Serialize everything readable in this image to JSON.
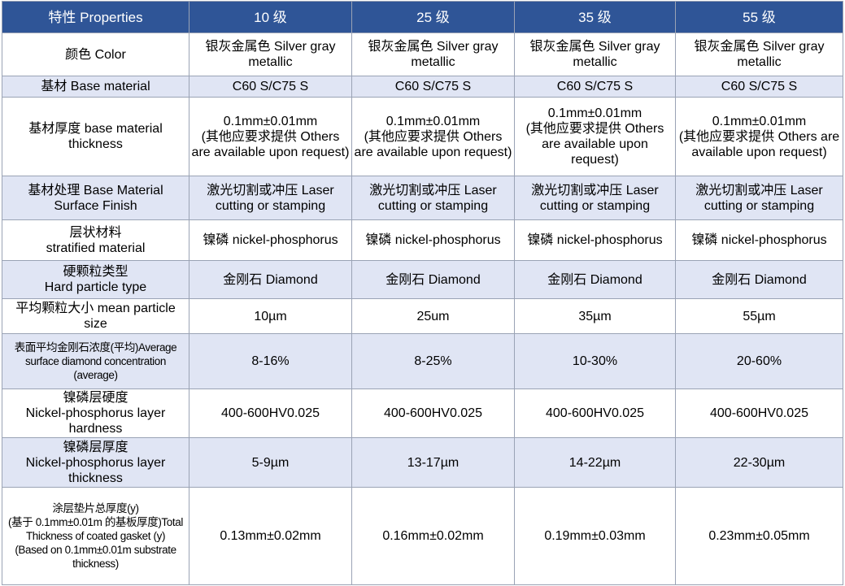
{
  "table": {
    "header": [
      "特性 Properties",
      "10 级",
      "25 级",
      "35 级",
      "55 级"
    ],
    "rows": [
      [
        "颜色 Color",
        "银灰金属色 Silver gray metallic",
        "银灰金属色 Silver gray metallic",
        "银灰金属色 Silver gray metallic",
        "银灰金属色 Silver gray metallic"
      ],
      [
        "基材 Base material",
        "C60 S/C75 S",
        "C60 S/C75 S",
        "C60 S/C75 S",
        "C60 S/C75 S"
      ],
      [
        "基材厚度 base material thickness",
        "0.1mm±0.01mm\n(其他应要求提供 Others are available upon request)",
        "0.1mm±0.01mm\n(其他应要求提供 Others are available upon request)",
        "0.1mm±0.01mm\n(其他应要求提供 Others are available upon request)",
        "0.1mm±0.01mm\n(其他应要求提供 Others are available upon request)"
      ],
      [
        "基材处理 Base Material Surface Finish",
        "激光切割或冲压 Laser cutting or stamping",
        "激光切割或冲压 Laser cutting or stamping",
        "激光切割或冲压 Laser cutting or stamping",
        "激光切割或冲压 Laser cutting or stamping"
      ],
      [
        "层状材料\nstratified material",
        "镍磷 nickel-phosphorus",
        "镍磷 nickel-phosphorus",
        "镍磷 nickel-phosphorus",
        "镍磷 nickel-phosphorus"
      ],
      [
        "硬颗粒类型\nHard particle type",
        "金刚石 Diamond",
        "金刚石 Diamond",
        "金刚石 Diamond",
        "金刚石 Diamond"
      ],
      [
        "平均颗粒大小 mean particle size",
        "10µm",
        "25um",
        "35µm",
        "55µm"
      ],
      [
        "表面平均金刚石浓度(平均)Average surface diamond concentration (average)",
        "8-16%",
        "8-25%",
        "10-30%",
        "20-60%"
      ],
      [
        "镍磷层硬度\nNickel-phosphorus layer hardness",
        "400-600HV0.025",
        "400-600HV0.025",
        "400-600HV0.025",
        "400-600HV0.025"
      ],
      [
        "镍磷层厚度\nNickel-phosphorus layer thickness",
        "5-9µm",
        "13-17µm",
        "14-22µm",
        "22-30µm"
      ],
      [
        "涂层垫片总厚度(y)\n(基于 0.1mm±0.01m 的基板厚度)Total Thickness of coated gasket (y)\n(Based on 0.1mm±0.01m substrate thickness)",
        "0.13mm±0.02mm",
        "0.16mm±0.02mm",
        "0.19mm±0.03mm",
        "0.23mm±0.05mm"
      ]
    ]
  }
}
